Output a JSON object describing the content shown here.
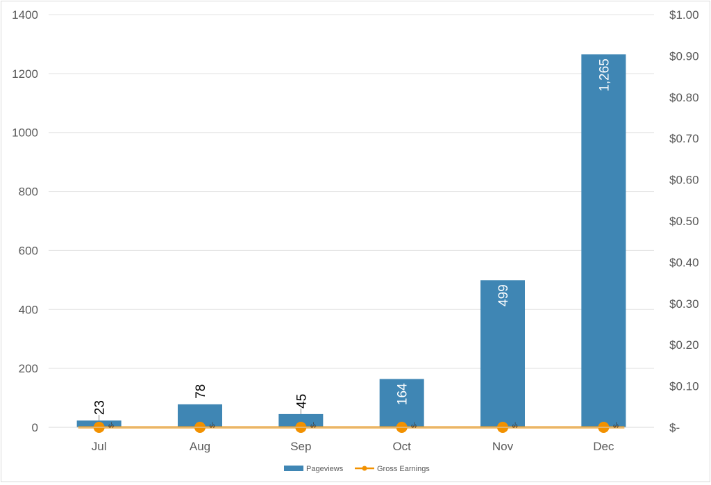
{
  "chart_data": {
    "type": "bar",
    "categories": [
      "Jul",
      "Aug",
      "Sep",
      "Oct",
      "Nov",
      "Dec"
    ],
    "series": [
      {
        "name": "Pageviews",
        "type": "bar",
        "axis": "left",
        "color": "#3f86b4",
        "values": [
          23,
          78,
          45,
          164,
          499,
          1265
        ],
        "labels": [
          "23",
          "78",
          "45",
          "164",
          "499",
          "1,265"
        ]
      },
      {
        "name": "Gross Earnings",
        "type": "line",
        "axis": "right",
        "color": "#f29100",
        "values": [
          0,
          0,
          0,
          0,
          0,
          0
        ],
        "labels": [
          "$-",
          "$-",
          "$-",
          "$-",
          "$-",
          "$-"
        ]
      }
    ],
    "y_left": {
      "range": [
        0,
        1400
      ],
      "ticks": [
        "0",
        "200",
        "400",
        "600",
        "800",
        "1000",
        "1200",
        "1400"
      ]
    },
    "y_right": {
      "range": [
        0,
        1.0
      ],
      "ticks": [
        "$-",
        "$0.10",
        "$0.20",
        "$0.30",
        "$0.40",
        "$0.50",
        "$0.60",
        "$0.70",
        "$0.80",
        "$0.90",
        "$1.00"
      ]
    },
    "grid": true,
    "legend_position": "bottom",
    "title": ""
  }
}
